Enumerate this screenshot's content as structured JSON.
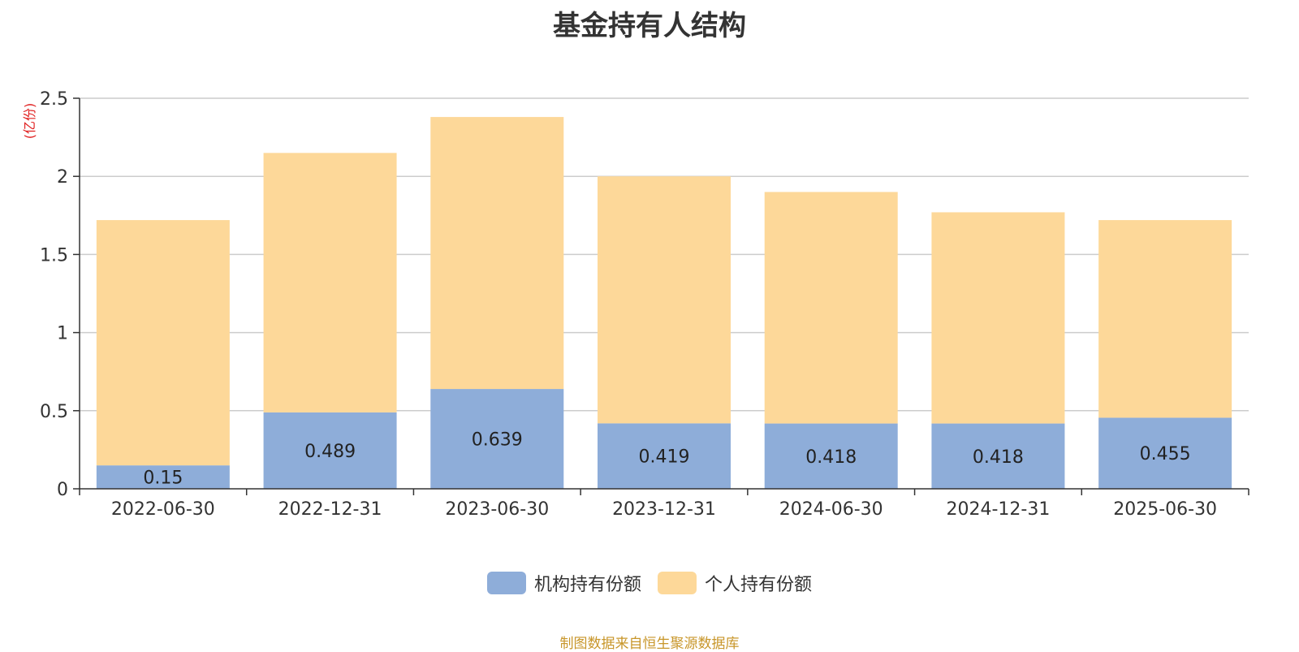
{
  "chart_data": {
    "type": "bar",
    "stacked": true,
    "title": "基金持有人结构",
    "unit": "(亿份)",
    "categories": [
      "2022-06-30",
      "2022-12-31",
      "2023-06-30",
      "2023-12-31",
      "2024-06-30",
      "2024-12-31",
      "2025-06-30"
    ],
    "series": [
      {
        "name": "机构持有份额",
        "color": "#8eadd9",
        "values": [
          0.15,
          0.489,
          0.639,
          0.419,
          0.418,
          0.418,
          0.455
        ],
        "labels": [
          "0.15",
          "0.489",
          "0.639",
          "0.419",
          "0.418",
          "0.418",
          "0.455"
        ]
      },
      {
        "name": "个人持有份额",
        "color": "#fdd899",
        "values": [
          1.57,
          1.661,
          1.741,
          1.581,
          1.482,
          1.352,
          1.265
        ]
      }
    ],
    "yticks": [
      "0",
      "0.5",
      "1",
      "1.5",
      "2",
      "2.5"
    ],
    "ylim": [
      0,
      2.5
    ],
    "grid": true,
    "legend_position": "bottom"
  },
  "source_note": "制图数据来自恒生聚源数据库"
}
